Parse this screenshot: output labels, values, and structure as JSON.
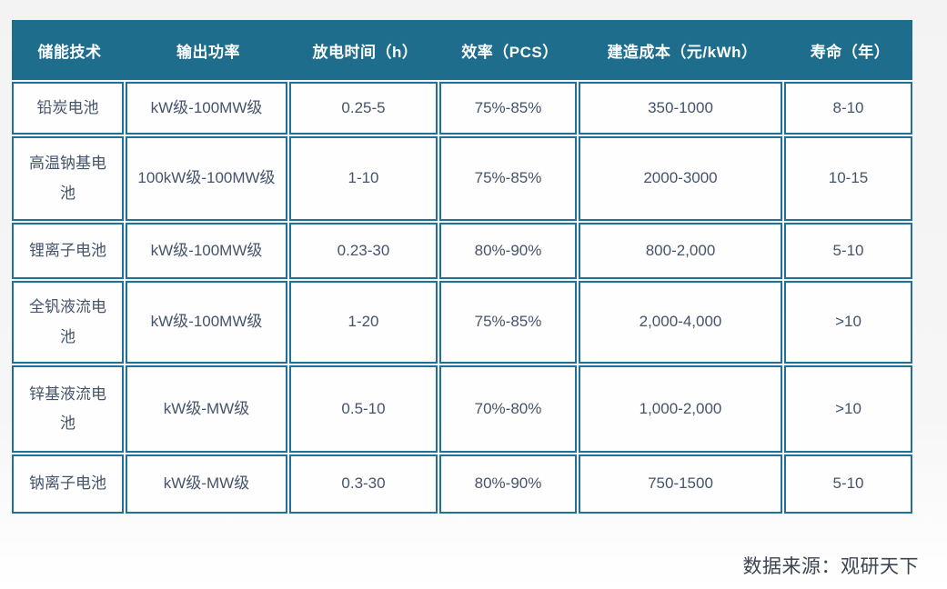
{
  "colors": {
    "header_bg": "#1e6d8d",
    "table_border": "#20719a",
    "header_text": "#ffffff",
    "body_text": "#44546a",
    "source_text": "#3b4652"
  },
  "footer": {
    "source_label": "数据来源：观研天下"
  },
  "chart_data": {
    "type": "table",
    "columns": [
      "储能技术",
      "输出功率",
      "放电时间（h）",
      "效率（PCS）",
      "建造成本（元/kWh）",
      "寿命（年）"
    ],
    "rows": [
      [
        "铅炭电池",
        "kW级-100MW级",
        "0.25-5",
        "75%-85%",
        "350-1000",
        "8-10"
      ],
      [
        "高温钠基电池",
        "100kW级-100MW级",
        "1-10",
        "75%-85%",
        "2000-3000",
        "10-15"
      ],
      [
        "锂离子电池",
        "kW级-100MW级",
        "0.23-30",
        "80%-90%",
        "800-2,000",
        "5-10"
      ],
      [
        "全钒液流电池",
        "kW级-100MW级",
        "1-20",
        "75%-85%",
        "2,000-4,000",
        ">10"
      ],
      [
        "锌基液流电池",
        "kW级-MW级",
        "0.5-10",
        "70%-80%",
        "1,000-2,000",
        ">10"
      ],
      [
        "钠离子电池",
        "kW级-MW级",
        "0.3-30",
        "80%-90%",
        "750-1500",
        "5-10"
      ]
    ],
    "source": "数据来源：观研天下",
    "title": "",
    "legend_position": "none",
    "grid": true
  }
}
